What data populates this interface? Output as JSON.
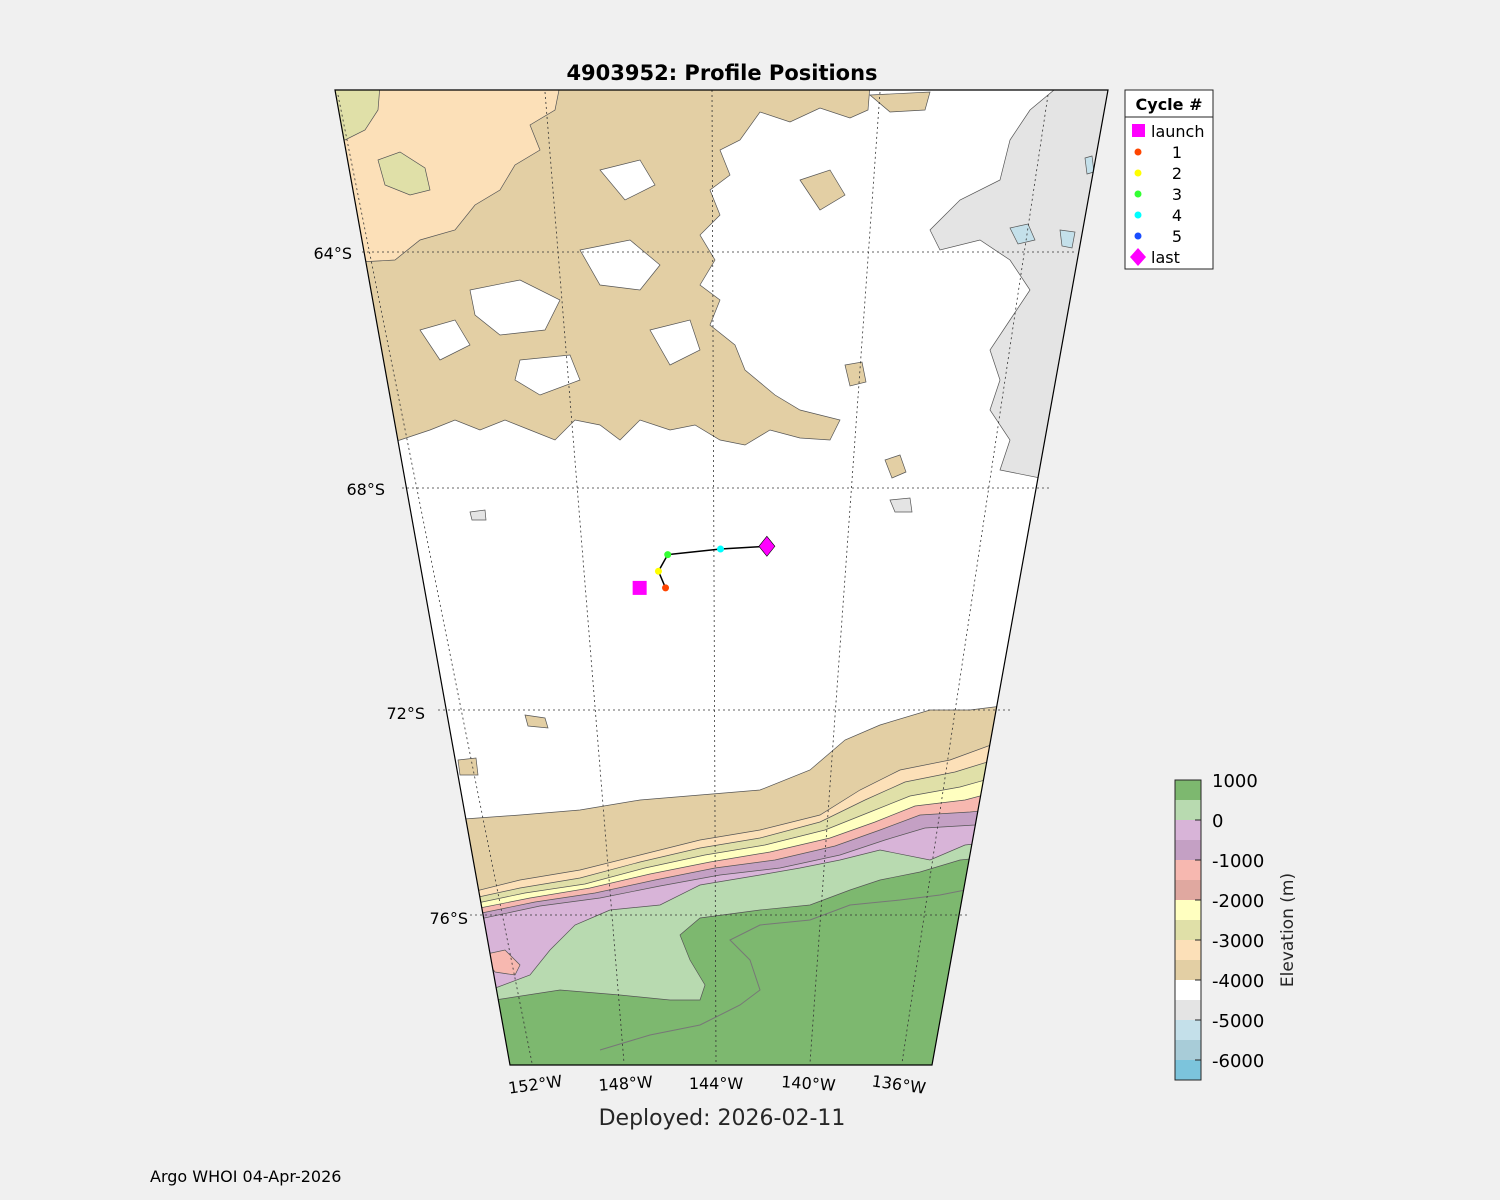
{
  "figure": {
    "title": "4903952: Profile Positions",
    "deployed": "Deployed: 2026-02-11",
    "credit": "Argo WHOI 04-Apr-2026"
  },
  "map": {
    "lat_labels": [
      "64°S",
      "68°S",
      "72°S",
      "76°S"
    ],
    "lon_labels": [
      "152°W",
      "148°W",
      "144°W",
      "140°W",
      "136°W"
    ]
  },
  "legend": {
    "title": "Cycle #",
    "items": [
      {
        "label": "launch",
        "marker": "square",
        "color": "#ff00ff"
      },
      {
        "label": "1",
        "marker": "dot",
        "color": "#ff4500"
      },
      {
        "label": "2",
        "marker": "dot",
        "color": "#ffff00"
      },
      {
        "label": "3",
        "marker": "dot",
        "color": "#33ff33"
      },
      {
        "label": "4",
        "marker": "dot",
        "color": "#00ffff"
      },
      {
        "label": "5",
        "marker": "dot",
        "color": "#1a4dff"
      },
      {
        "label": "last",
        "marker": "diamond",
        "color": "#ff00ff"
      }
    ]
  },
  "colorbar": {
    "label": "Elevation (m)",
    "ticks": [
      "1000",
      "0",
      "-1000",
      "-2000",
      "-3000",
      "-4000",
      "-5000",
      "-6000"
    ],
    "bands": [
      "#7db86f",
      "#b8dab0",
      "#d8b4d8",
      "#c4a0c4",
      "#f7b8b0",
      "#e0a8a0",
      "#ffffc0",
      "#e0e0a8",
      "#fce0b8",
      "#e3cfa4",
      "#ffffff",
      "#e4e4e4",
      "#c4e0ea",
      "#a8ccd8",
      "#7cc4dc"
    ]
  },
  "chart_data": {
    "type": "scatter",
    "x": [
      "launch",
      "1",
      "2",
      "3",
      "4",
      "5",
      "last"
    ],
    "series": [
      {
        "name": "launch",
        "lon": -146.3,
        "lat": -69.8
      },
      {
        "name": "1",
        "lon": -145.5,
        "lat": -69.8
      },
      {
        "name": "2",
        "lon": -145.7,
        "lat": -69.5
      },
      {
        "name": "3",
        "lon": -145.4,
        "lat": -69.2
      },
      {
        "name": "4",
        "lon": -143.8,
        "lat": -69.1
      },
      {
        "name": "5",
        "lon": -142.4,
        "lat": -69.05
      },
      {
        "name": "last",
        "lon": -142.4,
        "lat": -69.05
      }
    ],
    "track_color": "#000000"
  }
}
